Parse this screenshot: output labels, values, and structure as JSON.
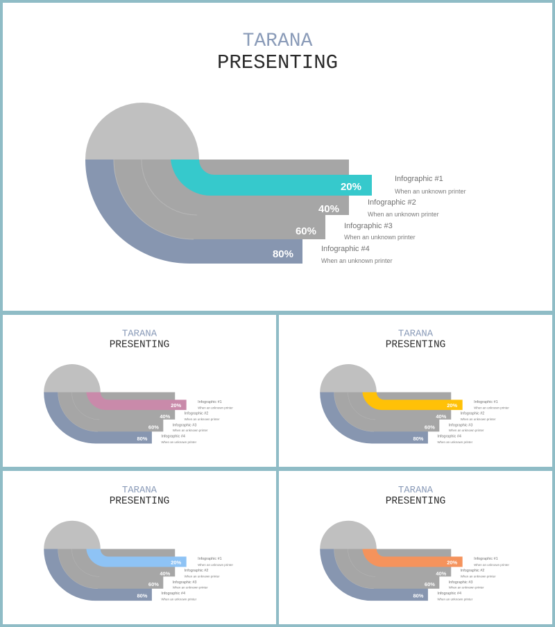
{
  "title_line1": "TARANA",
  "title_line2": "PRESENTING",
  "colors": {
    "background_frame": "#8fbcc6",
    "top_semicircle": "#c0c0c0",
    "outer_band": "#8796b0",
    "middle_bands": "#a6a6a6",
    "title_line1": "#8a9bb8",
    "title_line2": "#2a2a2a"
  },
  "items": [
    {
      "label": "Infographic #1",
      "sub": "When an unknown printer",
      "value": "20%"
    },
    {
      "label": "Infographic #2",
      "sub": "When an unknown printer",
      "value": "40%"
    },
    {
      "label": "Infographic #3",
      "sub": "When an unknown printer",
      "value": "60%"
    },
    {
      "label": "Infographic #4",
      "sub": "When an unknown printer",
      "value": "80%"
    }
  ],
  "slides": [
    {
      "name": "slide-main",
      "accent": "#36c9cc"
    },
    {
      "name": "slide-pink",
      "accent": "#c98aaa"
    },
    {
      "name": "slide-yellow",
      "accent": "#ffc107"
    },
    {
      "name": "slide-blue",
      "accent": "#8ec3f5"
    },
    {
      "name": "slide-orange",
      "accent": "#f5935c"
    }
  ]
}
